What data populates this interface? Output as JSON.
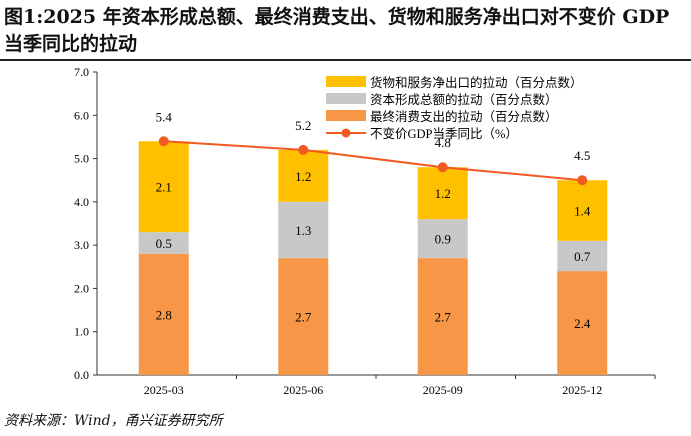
{
  "chart_data": {
    "type": "bar",
    "title": "图1:2025 年资本形成总额、最终消费支出、货物和服务净出口对不变价 GDP 当季同比的拉动",
    "categories": [
      "2025-03",
      "2025-06",
      "2025-09",
      "2025-12"
    ],
    "ylim": [
      0,
      7
    ],
    "yticks": [
      "0.0",
      "1.0",
      "2.0",
      "3.0",
      "4.0",
      "5.0",
      "6.0",
      "7.0"
    ],
    "series": [
      {
        "name": "最终消费支出的拉动（百分点数）",
        "type": "bar",
        "color": "#F79646",
        "values": [
          2.8,
          2.7,
          2.7,
          2.4
        ]
      },
      {
        "name": "资本形成总额的拉动（百分点数）",
        "type": "bar",
        "color": "#C8C8C8",
        "values": [
          0.5,
          1.3,
          0.9,
          0.7
        ]
      },
      {
        "name": "货物和服务净出口的拉动（百分点数）",
        "type": "bar",
        "color": "#FFC000",
        "values": [
          2.1,
          1.2,
          1.2,
          1.4
        ]
      },
      {
        "name": "不变价GDP当季同比（%）",
        "type": "line",
        "color": "#F15A22",
        "values": [
          5.4,
          5.2,
          4.8,
          4.5
        ]
      }
    ],
    "legend_order": [
      2,
      1,
      0,
      3
    ],
    "legend_position": "top-right",
    "grid": false
  },
  "source": "资料来源：Wind，甬兴证券研究所"
}
